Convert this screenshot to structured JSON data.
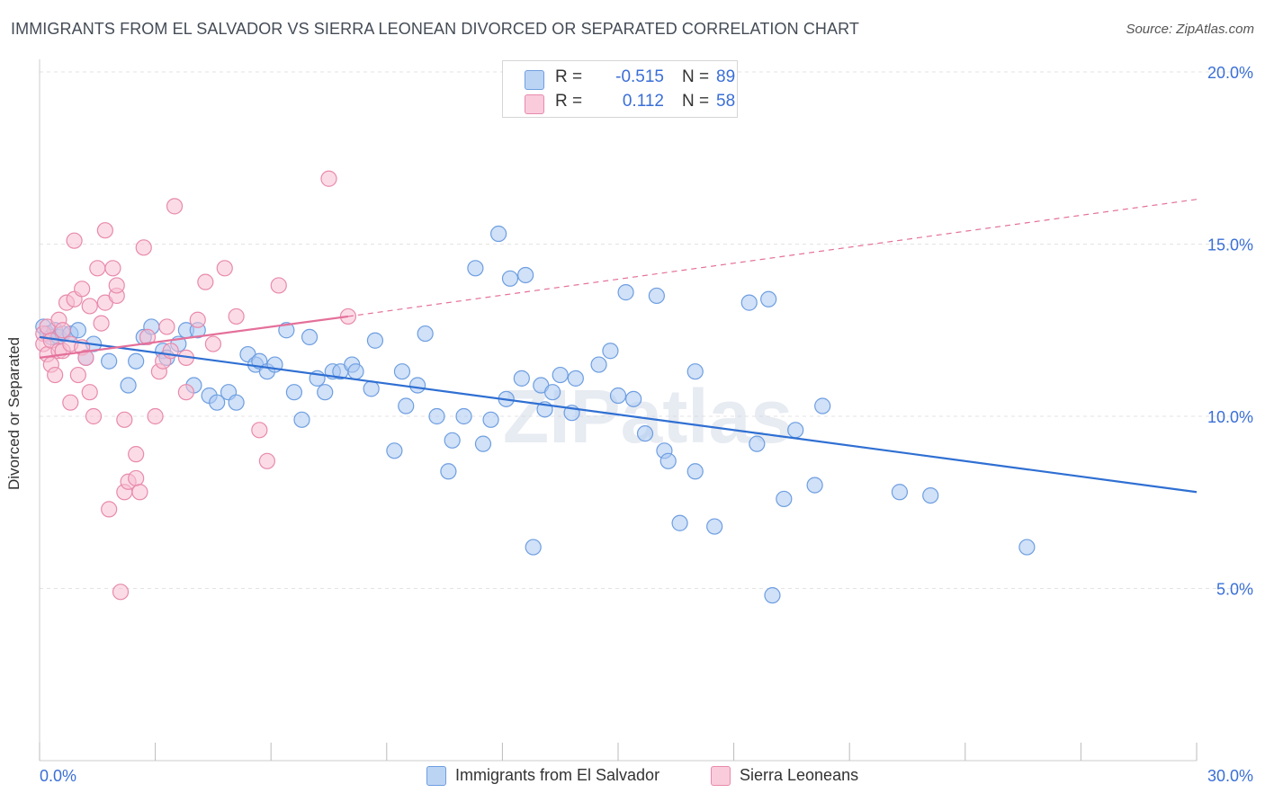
{
  "title": "IMMIGRANTS FROM EL SALVADOR VS SIERRA LEONEAN DIVORCED OR SEPARATED CORRELATION CHART",
  "source": "Source: ZipAtlas.com",
  "watermark": "ZIPatlas",
  "legend": {
    "rows": [
      {
        "r_label": "R =",
        "r_value": "-0.515",
        "n_label": "N =",
        "n_value": "89"
      },
      {
        "r_label": "R =",
        "r_value": "0.112",
        "n_label": "N =",
        "n_value": "58"
      }
    ]
  },
  "bottom_legend": {
    "items": [
      "Immigrants from El Salvador",
      "Sierra Leoneans"
    ]
  },
  "colors": {
    "blue_fill": "#aac8f2",
    "blue_stroke": "#6e9ee0",
    "blue_line": "#2f6fd3",
    "pink_fill": "#f7bfd2",
    "pink_stroke": "#e88aac",
    "pink_line": "#e4709a",
    "grid": "#e3e3e3",
    "axis_text": "#3a6fd6"
  },
  "chart_data": {
    "type": "scatter",
    "title": "IMMIGRANTS FROM EL SALVADOR VS SIERRA LEONEAN DIVORCED OR SEPARATED CORRELATION CHART",
    "xlabel": "",
    "ylabel": "Divorced or Separated",
    "xlim": [
      0,
      30
    ],
    "ylim": [
      0,
      20
    ],
    "x_tick_labels": [
      "0.0%",
      "30.0%"
    ],
    "y_ticks": [
      5,
      10,
      15,
      20
    ],
    "y_tick_labels": [
      "5.0%",
      "10.0%",
      "15.0%",
      "20.0%"
    ],
    "grid": true,
    "legend_position": "top-center",
    "series": [
      {
        "name": "Immigrants from El Salvador",
        "color": "#aac8f2",
        "trend": {
          "x": [
            0,
            30
          ],
          "y": [
            12.3,
            7.8
          ],
          "dashed_after": null
        },
        "points": [
          [
            0.1,
            12.6
          ],
          [
            0.2,
            12.4
          ],
          [
            0.3,
            12.3
          ],
          [
            0.4,
            12.5
          ],
          [
            0.5,
            12.3
          ],
          [
            0.6,
            12.4
          ],
          [
            0.8,
            12.4
          ],
          [
            1.0,
            12.5
          ],
          [
            1.4,
            12.1
          ],
          [
            1.2,
            11.7
          ],
          [
            1.8,
            11.6
          ],
          [
            2.3,
            10.9
          ],
          [
            2.5,
            11.6
          ],
          [
            2.7,
            12.3
          ],
          [
            2.9,
            12.6
          ],
          [
            3.2,
            11.9
          ],
          [
            3.3,
            11.7
          ],
          [
            3.6,
            12.1
          ],
          [
            3.8,
            12.5
          ],
          [
            4.0,
            10.9
          ],
          [
            4.1,
            12.5
          ],
          [
            4.4,
            10.6
          ],
          [
            4.6,
            10.4
          ],
          [
            4.9,
            10.7
          ],
          [
            5.1,
            10.4
          ],
          [
            5.4,
            11.8
          ],
          [
            5.6,
            11.5
          ],
          [
            5.7,
            11.6
          ],
          [
            5.9,
            11.3
          ],
          [
            6.1,
            11.5
          ],
          [
            6.4,
            12.5
          ],
          [
            6.6,
            10.7
          ],
          [
            6.8,
            9.9
          ],
          [
            7.0,
            12.3
          ],
          [
            7.2,
            11.1
          ],
          [
            7.4,
            10.7
          ],
          [
            7.6,
            11.3
          ],
          [
            7.8,
            11.3
          ],
          [
            8.1,
            11.5
          ],
          [
            8.2,
            11.3
          ],
          [
            8.7,
            12.2
          ],
          [
            8.6,
            10.8
          ],
          [
            9.2,
            9.0
          ],
          [
            9.4,
            11.3
          ],
          [
            9.5,
            10.3
          ],
          [
            9.8,
            10.9
          ],
          [
            10.0,
            12.4
          ],
          [
            10.3,
            10.0
          ],
          [
            10.6,
            8.4
          ],
          [
            10.7,
            9.3
          ],
          [
            11.0,
            10.0
          ],
          [
            11.3,
            14.3
          ],
          [
            11.5,
            9.2
          ],
          [
            11.7,
            9.9
          ],
          [
            11.9,
            15.3
          ],
          [
            12.1,
            10.5
          ],
          [
            12.2,
            14.0
          ],
          [
            12.5,
            11.1
          ],
          [
            12.6,
            14.1
          ],
          [
            12.8,
            6.2
          ],
          [
            13.0,
            10.9
          ],
          [
            13.1,
            10.2
          ],
          [
            13.3,
            10.7
          ],
          [
            13.5,
            11.2
          ],
          [
            13.8,
            10.1
          ],
          [
            13.9,
            11.1
          ],
          [
            14.5,
            11.5
          ],
          [
            14.8,
            11.9
          ],
          [
            15.0,
            10.6
          ],
          [
            15.2,
            13.6
          ],
          [
            15.4,
            10.5
          ],
          [
            15.7,
            9.5
          ],
          [
            16.0,
            13.5
          ],
          [
            16.2,
            9.0
          ],
          [
            16.3,
            8.7
          ],
          [
            16.6,
            6.9
          ],
          [
            17.0,
            8.4
          ],
          [
            17.0,
            11.3
          ],
          [
            17.5,
            6.8
          ],
          [
            18.4,
            13.3
          ],
          [
            18.6,
            9.2
          ],
          [
            18.9,
            13.4
          ],
          [
            19.0,
            4.8
          ],
          [
            19.3,
            7.6
          ],
          [
            19.6,
            9.6
          ],
          [
            20.1,
            8.0
          ],
          [
            20.3,
            10.3
          ],
          [
            22.3,
            7.8
          ],
          [
            23.1,
            7.7
          ],
          [
            25.6,
            6.2
          ]
        ]
      },
      {
        "name": "Sierra Leoneans",
        "color": "#f7bfd2",
        "trend": {
          "x": [
            0,
            8
          ],
          "y": [
            11.7,
            12.9
          ],
          "dashed_to": [
            30,
            16.3
          ]
        },
        "points": [
          [
            0.1,
            12.4
          ],
          [
            0.1,
            12.1
          ],
          [
            0.2,
            12.6
          ],
          [
            0.2,
            11.8
          ],
          [
            0.3,
            12.2
          ],
          [
            0.3,
            11.5
          ],
          [
            0.4,
            11.2
          ],
          [
            0.5,
            11.9
          ],
          [
            0.5,
            12.8
          ],
          [
            0.6,
            12.5
          ],
          [
            0.6,
            11.9
          ],
          [
            0.7,
            13.3
          ],
          [
            0.8,
            10.4
          ],
          [
            0.8,
            12.1
          ],
          [
            0.9,
            13.4
          ],
          [
            0.9,
            15.1
          ],
          [
            1.0,
            11.2
          ],
          [
            1.1,
            12.0
          ],
          [
            1.1,
            13.7
          ],
          [
            1.2,
            11.7
          ],
          [
            1.3,
            13.2
          ],
          [
            1.3,
            10.7
          ],
          [
            1.4,
            10.0
          ],
          [
            1.5,
            14.3
          ],
          [
            1.6,
            12.7
          ],
          [
            1.7,
            13.3
          ],
          [
            1.7,
            15.4
          ],
          [
            1.8,
            7.3
          ],
          [
            1.9,
            14.3
          ],
          [
            2.0,
            13.5
          ],
          [
            2.0,
            13.8
          ],
          [
            2.1,
            4.9
          ],
          [
            2.2,
            9.9
          ],
          [
            2.2,
            7.8
          ],
          [
            2.3,
            8.1
          ],
          [
            2.5,
            8.9
          ],
          [
            2.5,
            8.2
          ],
          [
            2.6,
            7.8
          ],
          [
            2.7,
            14.9
          ],
          [
            2.8,
            12.3
          ],
          [
            3.0,
            10.0
          ],
          [
            3.1,
            11.3
          ],
          [
            3.2,
            11.6
          ],
          [
            3.3,
            12.6
          ],
          [
            3.4,
            11.9
          ],
          [
            3.5,
            16.1
          ],
          [
            3.8,
            11.7
          ],
          [
            3.8,
            10.7
          ],
          [
            4.1,
            12.8
          ],
          [
            4.3,
            13.9
          ],
          [
            4.5,
            12.1
          ],
          [
            4.8,
            14.3
          ],
          [
            5.1,
            12.9
          ],
          [
            5.7,
            9.6
          ],
          [
            5.9,
            8.7
          ],
          [
            6.2,
            13.8
          ],
          [
            7.5,
            16.9
          ],
          [
            8.0,
            12.9
          ]
        ]
      }
    ]
  }
}
